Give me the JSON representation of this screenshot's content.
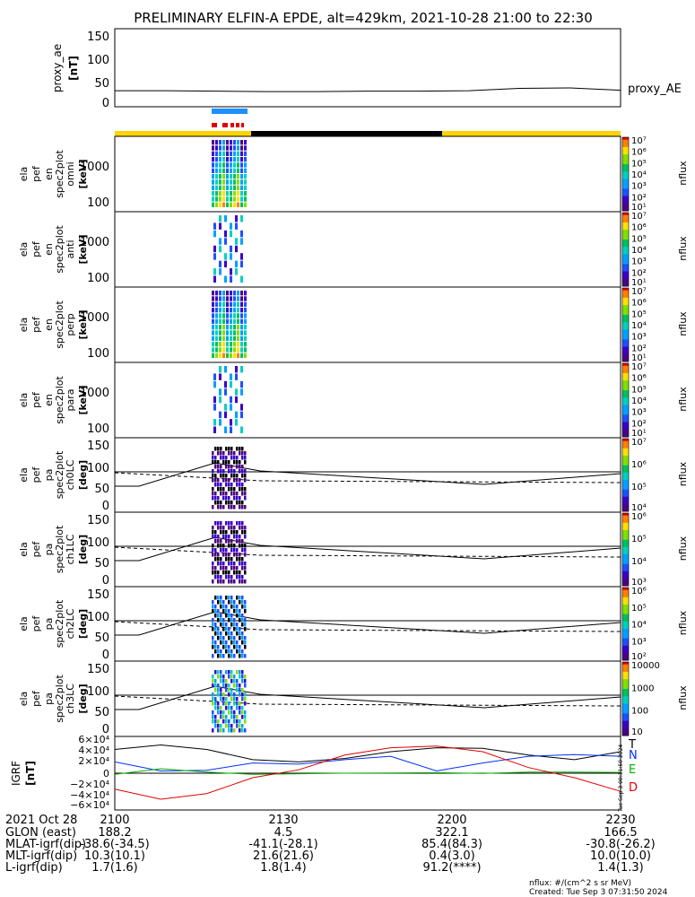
{
  "title": "PRELIMINARY ELFIN-A EPDE, alt=429km, 2021-10-28 21:00 to 22:30",
  "colors": {
    "ae_line": "#000000",
    "bar_yellow": "#ffd400",
    "bar_black": "#000000",
    "bar_blue": "#1e90ff",
    "bar_red": "#e00000",
    "n_comp": "#0030ff",
    "e_comp": "#00b000",
    "d_comp": "#e00000",
    "t_comp": "#000000"
  },
  "proxy_ae": {
    "ylabel_lines": [
      "proxy_ae",
      "[nT]"
    ],
    "ticks": [
      "150",
      "100",
      "50",
      "0"
    ],
    "label": "proxy_AE"
  },
  "energy_panels": [
    {
      "ylabel_lines": [
        "ela",
        "pef",
        "en",
        "spec2plot",
        "omni",
        "[keV]"
      ],
      "ticks": [
        "1000",
        "100"
      ]
    },
    {
      "ylabel_lines": [
        "ela",
        "pef",
        "en",
        "spec2plot",
        "anti",
        "[keV]"
      ],
      "ticks": [
        "1000",
        "100"
      ]
    },
    {
      "ylabel_lines": [
        "ela",
        "pef",
        "en",
        "spec2plot",
        "perp",
        "[keV]"
      ],
      "ticks": [
        "1000",
        "100"
      ]
    },
    {
      "ylabel_lines": [
        "ela",
        "pef",
        "en",
        "spec2plot",
        "para",
        "[keV]"
      ],
      "ticks": [
        "1000",
        "100"
      ]
    }
  ],
  "pa_panels": [
    {
      "ylabel_lines": [
        "ela",
        "pef",
        "pa",
        "spec2plot",
        "ch0LC",
        "[deg]"
      ],
      "ticks": [
        "150",
        "100",
        "50",
        "0"
      ]
    },
    {
      "ylabel_lines": [
        "ela",
        "pef",
        "pa",
        "spec2plot",
        "ch1LC",
        "[deg]"
      ],
      "ticks": [
        "150",
        "100",
        "50",
        "0"
      ]
    },
    {
      "ylabel_lines": [
        "ela",
        "pef",
        "pa",
        "spec2plot",
        "ch2LC",
        "[deg]"
      ],
      "ticks": [
        "150",
        "100",
        "50",
        "0"
      ]
    },
    {
      "ylabel_lines": [
        "ela",
        "pef",
        "pa",
        "spec2plot",
        "ch3LC",
        "[deg]"
      ],
      "ticks": [
        "150",
        "100",
        "50",
        "0"
      ]
    }
  ],
  "colorbars": [
    {
      "ticks": [
        "10⁷",
        "10⁶",
        "10⁵",
        "10⁴",
        "10³",
        "10²",
        "10¹"
      ],
      "label": "nflux"
    },
    {
      "ticks": [
        "10⁷",
        "10⁶",
        "10⁵",
        "10⁴",
        "10³",
        "10²",
        "10¹"
      ],
      "label": "nflux"
    },
    {
      "ticks": [
        "10⁷",
        "10⁶",
        "10⁵",
        "10⁴",
        "10³",
        "10²",
        "10¹"
      ],
      "label": "nflux"
    },
    {
      "ticks": [
        "10⁷",
        "10⁶",
        "10⁵",
        "10⁴",
        "10³",
        "10²",
        "10¹"
      ],
      "label": "nflux"
    },
    {
      "ticks": [
        "10⁷",
        "10⁶",
        "10⁵",
        "10⁴"
      ],
      "label": "nflux"
    },
    {
      "ticks": [
        "10⁶",
        "10⁵",
        "10⁴",
        "10³"
      ],
      "label": "nflux"
    },
    {
      "ticks": [
        "10⁶",
        "10⁵",
        "10⁴",
        "10³",
        "10²"
      ],
      "label": "nflux"
    },
    {
      "ticks": [
        "10000",
        "1000",
        "100",
        "10"
      ],
      "label": "nflux"
    }
  ],
  "igrf": {
    "ylabel_lines": [
      "IGRF",
      "[nT]"
    ],
    "ticks": [
      "6×10⁴",
      "4×10⁴",
      "2×10⁴",
      "0",
      "−2×10⁴",
      "−4×10⁴",
      "−6×10⁴"
    ],
    "legend": [
      "T",
      "N",
      "E",
      "D"
    ],
    "side_note": "Tue Sep  3 00:31:50 2024"
  },
  "time_ticks": [
    "2100",
    "2130",
    "2200",
    "2230"
  ],
  "orbit_rows": [
    {
      "label": "2021 Oct 28",
      "values": [
        "2100",
        "2130",
        "2200",
        "2230"
      ]
    },
    {
      "label": "GLON (east)",
      "values": [
        "188.2",
        "4.5",
        "322.1",
        "166.5"
      ]
    },
    {
      "label": "MLAT-igrf(dip)",
      "values": [
        "-38.6(-34.5)",
        "-41.1(-28.1)",
        "85.4(84.3)",
        "-30.8(-26.2)"
      ]
    },
    {
      "label": "MLT-igrf(dip)",
      "values": [
        "10.3(10.1)",
        "21.6(21.6)",
        "0.4(3.0)",
        "10.0(10.0)"
      ]
    },
    {
      "label": "L-igrf(dip)",
      "values": [
        "1.7(1.6)",
        "1.8(1.4)",
        "91.2(****)",
        "1.4(1.3)"
      ]
    }
  ],
  "footer": [
    "nflux: #/(cm^2 s sr MeV)",
    "Created: Tue Sep  3 07:31:50 2024"
  ],
  "chart_data": [
    {
      "type": "line",
      "title": "proxy_ae",
      "ylabel": "proxy_ae [nT]",
      "ylim": [
        -10,
        160
      ],
      "x": [
        "21:00",
        "21:10",
        "21:20",
        "21:30",
        "21:40",
        "21:50",
        "22:00",
        "22:10",
        "22:15",
        "22:20",
        "22:30"
      ],
      "series": [
        {
          "name": "proxy_AE",
          "values": [
            25,
            25,
            24,
            23,
            23,
            24,
            24,
            25,
            30,
            31,
            26
          ]
        }
      ]
    },
    {
      "type": "line",
      "title": "IGRF",
      "ylabel": "IGRF [nT]",
      "ylim": [
        -65000,
        65000
      ],
      "x": [
        "21:00",
        "21:08",
        "21:16",
        "21:24",
        "21:30",
        "21:40",
        "21:50",
        "22:00",
        "22:08",
        "22:15",
        "22:22",
        "22:30"
      ],
      "series": [
        {
          "name": "T",
          "values": [
            42000,
            50000,
            42000,
            24000,
            20000,
            26000,
            38000,
            45000,
            44000,
            32000,
            24000,
            38000
          ]
        },
        {
          "name": "N",
          "values": [
            20000,
            4000,
            5000,
            18000,
            16000,
            24000,
            30000,
            4000,
            18000,
            30000,
            33000,
            30000
          ]
        },
        {
          "name": "E",
          "values": [
            -2000,
            8000,
            2000,
            -2000,
            -1000,
            0,
            500,
            1000,
            -500,
            2000,
            2000,
            1500
          ]
        },
        {
          "name": "D",
          "values": [
            -28000,
            -46000,
            -36000,
            -8000,
            6000,
            32000,
            45000,
            48000,
            38000,
            10000,
            -8000,
            -32000
          ]
        }
      ]
    }
  ]
}
